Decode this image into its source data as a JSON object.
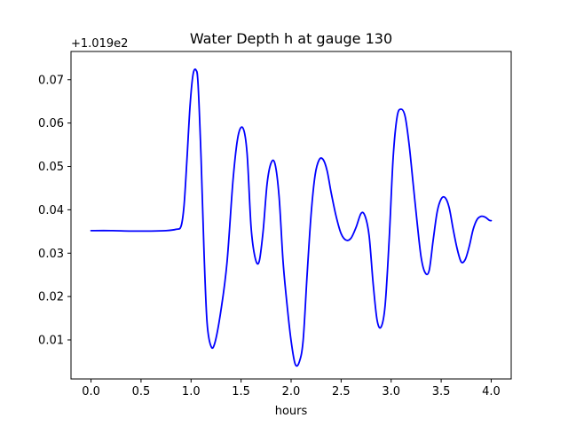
{
  "chart_data": {
    "type": "line",
    "title": "Water Depth h at gauge 130",
    "xlabel": "hours",
    "ylabel": "",
    "y_offset_label": "+1.019e2",
    "xlim": [
      -0.2,
      4.2
    ],
    "ylim": [
      0.001,
      0.0765
    ],
    "xticks": [
      0.0,
      0.5,
      1.0,
      1.5,
      2.0,
      2.5,
      3.0,
      3.5,
      4.0
    ],
    "xtick_labels": [
      "0.0",
      "0.5",
      "1.0",
      "1.5",
      "2.0",
      "2.5",
      "3.0",
      "3.5",
      "4.0"
    ],
    "yticks": [
      0.01,
      0.02,
      0.03,
      0.04,
      0.05,
      0.06,
      0.07
    ],
    "ytick_labels": [
      "0.01",
      "0.02",
      "0.03",
      "0.04",
      "0.05",
      "0.06",
      "0.07"
    ],
    "grid": false,
    "series": [
      {
        "color": "#0000ff",
        "x": [
          0.0,
          0.2,
          0.4,
          0.6,
          0.75,
          0.85,
          0.9,
          0.93,
          0.96,
          0.99,
          1.02,
          1.05,
          1.07,
          1.1,
          1.13,
          1.16,
          1.2,
          1.24,
          1.3,
          1.36,
          1.42,
          1.47,
          1.52,
          1.56,
          1.6,
          1.64,
          1.68,
          1.72,
          1.76,
          1.8,
          1.84,
          1.88,
          1.92,
          1.96,
          2.0,
          2.04,
          2.08,
          2.12,
          2.16,
          2.2,
          2.24,
          2.28,
          2.32,
          2.36,
          2.4,
          2.45,
          2.5,
          2.55,
          2.6,
          2.65,
          2.7,
          2.74,
          2.78,
          2.82,
          2.86,
          2.9,
          2.94,
          2.98,
          3.02,
          3.06,
          3.1,
          3.14,
          3.18,
          3.22,
          3.26,
          3.3,
          3.34,
          3.38,
          3.42,
          3.46,
          3.5,
          3.54,
          3.58,
          3.62,
          3.66,
          3.7,
          3.74,
          3.78,
          3.82,
          3.86,
          3.9,
          3.94,
          3.98,
          4.0
        ],
        "y": [
          0.0352,
          0.0352,
          0.0351,
          0.0351,
          0.0352,
          0.0355,
          0.0362,
          0.041,
          0.052,
          0.064,
          0.0712,
          0.0722,
          0.069,
          0.052,
          0.03,
          0.014,
          0.0085,
          0.0095,
          0.017,
          0.028,
          0.047,
          0.057,
          0.0588,
          0.053,
          0.036,
          0.029,
          0.028,
          0.035,
          0.046,
          0.0508,
          0.0505,
          0.043,
          0.028,
          0.018,
          0.0098,
          0.0045,
          0.0048,
          0.0098,
          0.025,
          0.039,
          0.048,
          0.0515,
          0.0516,
          0.049,
          0.044,
          0.0385,
          0.0345,
          0.033,
          0.0335,
          0.036,
          0.0392,
          0.0385,
          0.034,
          0.023,
          0.0145,
          0.013,
          0.018,
          0.033,
          0.052,
          0.0615,
          0.0632,
          0.0615,
          0.055,
          0.046,
          0.037,
          0.029,
          0.0255,
          0.026,
          0.033,
          0.0395,
          0.0425,
          0.0428,
          0.0405,
          0.0355,
          0.031,
          0.028,
          0.0285,
          0.0315,
          0.0355,
          0.0378,
          0.0385,
          0.0383,
          0.0376,
          0.0375
        ]
      }
    ]
  }
}
